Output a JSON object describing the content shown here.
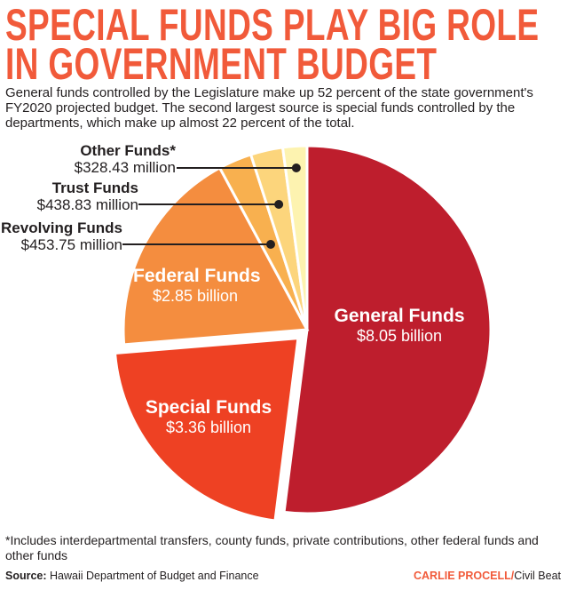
{
  "title_line1": "SPECIAL FUNDS PLAY BIG ROLE",
  "title_line2": "IN GOVERNMENT BUDGET",
  "subtitle": "General funds controlled by the Legislature make up 52 percent of the state government's FY2020 projected budget. The second largest source is special funds controlled by the departments, which make up almost 22 percent of the total.",
  "chart_data": {
    "type": "pie",
    "unit": "billion USD",
    "slices": [
      {
        "name": "General Funds",
        "value": 8.05,
        "label": "$8.05 billion",
        "color": "#be1e2d"
      },
      {
        "name": "Special Funds",
        "value": 3.36,
        "label": "$3.36 billion",
        "color": "#ee4123",
        "exploded": true
      },
      {
        "name": "Federal Funds",
        "value": 2.85,
        "label": "$2.85 billion",
        "color": "#f48d3f"
      },
      {
        "name": "Revolving Funds",
        "value": 0.45375,
        "label": "$453.75 million",
        "color": "#f8b04f"
      },
      {
        "name": "Trust Funds",
        "value": 0.43883,
        "label": "$438.83 million",
        "color": "#fcd57c"
      },
      {
        "name": "Other Funds*",
        "value": 0.32843,
        "label": "$328.43 million",
        "color": "#fdf3b0"
      }
    ]
  },
  "footnote": "*Includes interdepartmental transfers, county funds, private contributions, other federal funds and other funds",
  "source_label": "Source:",
  "source_text": "Hawaii Department of Budget and Finance",
  "credit_author": "CARLIE PROCELL/",
  "credit_org": "Civil Beat"
}
